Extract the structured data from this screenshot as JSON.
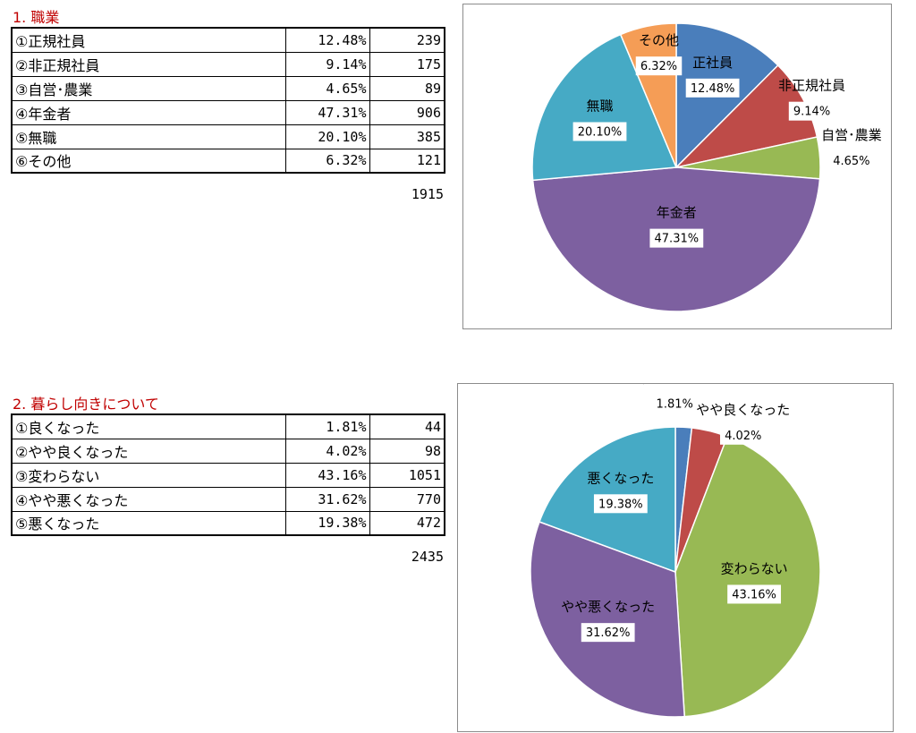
{
  "sections": [
    {
      "title": "1. 職業",
      "rows": [
        {
          "label": "①正規社員",
          "pct": "12.48%",
          "count": "239"
        },
        {
          "label": "②非正規社員",
          "pct": "9.14%",
          "count": "175"
        },
        {
          "label": "③自営･農業",
          "pct": "4.65%",
          "count": "89"
        },
        {
          "label": "④年金者",
          "pct": "47.31%",
          "count": "906"
        },
        {
          "label": "⑤無職",
          "pct": "20.10%",
          "count": "385"
        },
        {
          "label": "⑥その他",
          "pct": "6.32%",
          "count": "121"
        }
      ],
      "total": "1915"
    },
    {
      "title": "2. 暮らし向きについて",
      "rows": [
        {
          "label": "①良くなった",
          "pct": "1.81%",
          "count": "44"
        },
        {
          "label": "②やや良くなった",
          "pct": "4.02%",
          "count": "98"
        },
        {
          "label": "③変わらない",
          "pct": "43.16%",
          "count": "1051"
        },
        {
          "label": "④やや悪くなった",
          "pct": "31.62%",
          "count": "770"
        },
        {
          "label": "⑤悪くなった",
          "pct": "19.38%",
          "count": "472"
        }
      ],
      "total": "2435"
    }
  ],
  "chart_data": [
    {
      "type": "pie",
      "categories": [
        "正社員",
        "非正規社員",
        "自営･農業",
        "年金者",
        "無職",
        "その他"
      ],
      "values": [
        12.48,
        9.14,
        4.65,
        47.31,
        20.1,
        6.32
      ],
      "value_labels": [
        "12.48%",
        "9.14%",
        "4.65%",
        "47.31%",
        "20.10%",
        "6.32%"
      ],
      "colors": [
        "#4a7ebb",
        "#be4b48",
        "#98b954",
        "#7d60a0",
        "#46aac5",
        "#f59d56"
      ],
      "start": "12 o'clock, clockwise"
    },
    {
      "type": "pie",
      "categories": [
        "良くなった",
        "やや良くなった",
        "変わらない",
        "やや悪くなった",
        "悪くなった"
      ],
      "values": [
        1.81,
        4.02,
        43.16,
        31.62,
        19.38
      ],
      "value_labels": [
        "1.81%",
        "4.02%",
        "43.16%",
        "31.62%",
        "19.38%"
      ],
      "colors": [
        "#4a7ebb",
        "#be4b48",
        "#98b954",
        "#7d60a0",
        "#46aac5"
      ],
      "start": "12 o'clock, clockwise"
    }
  ]
}
